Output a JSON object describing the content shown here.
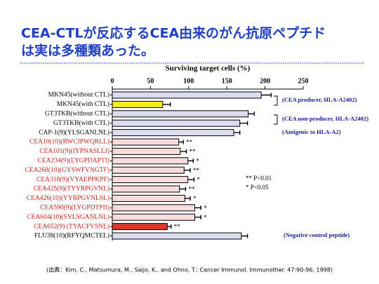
{
  "title_lines": [
    "CEA-CTLが反応するCEA由来のがん抗原ペプチド",
    "は実は多種類あった。"
  ],
  "chart_data": {
    "type": "bar",
    "orientation": "horizontal",
    "x_label": "Surviving target cells (%)",
    "categories": [
      "MKN45(without CTL)",
      "MKN45(with CTL)",
      "GT3TKB(without CTL)",
      "GT3TKB(with CTL)",
      "CAP-1(9)(YLSGANLNL)",
      "CEA10(10)(RWCIPWQRLL)",
      "CEA101(9)(IYPNASLLI)",
      "CEA234(9)(LYGPDAPTI)",
      "CEA268(10)(GYSWFVNGTF)",
      "CEA318(9)(VYAEPPKPF)",
      "CEA425(9)(TYYRPGVNL)",
      "CEA426(10)(YYRPGVNLSL)",
      "CEA590(9)(LYGPDTPII)",
      "CEA604(10)(SYLSGANLNL)",
      "CEA652(9)  (TYACFVSNL)",
      "FLU38(10)(RFYQMCTEL)"
    ],
    "values": [
      195,
      66,
      178,
      167,
      159,
      87,
      89,
      99,
      94,
      99,
      88,
      95,
      108,
      108,
      72,
      169
    ],
    "errors": [
      13,
      10,
      8,
      10,
      8,
      6,
      8,
      7,
      8,
      8,
      8,
      7,
      8,
      8,
      5,
      8
    ],
    "significance": [
      null,
      null,
      null,
      null,
      null,
      "**",
      "**",
      "*",
      "**",
      "*",
      "**",
      "*",
      "*",
      "*",
      "**",
      null
    ],
    "bar_colors": [
      "#dcdcf0",
      "#f5ec1a",
      "#dcdcf0",
      "#dcdcf0",
      "#dcdcf0",
      "#f6dcdc",
      "#f6dcdc",
      "#f6dcdc",
      "#f6dcdc",
      "#f6dcdc",
      "#f6dcdc",
      "#f6dcdc",
      "#f6dcdc",
      "#f6dcdc",
      "#d6392b",
      "#dcdcf0"
    ],
    "label_colors": [
      "#000000",
      "#000000",
      "#000000",
      "#000000",
      "#000000",
      "#c8231a",
      "#c8231a",
      "#c8231a",
      "#c8231a",
      "#c8231a",
      "#c8231a",
      "#c8231a",
      "#c8231a",
      "#c8231a",
      "#c8231a",
      "#000000"
    ],
    "xlim": [
      0,
      250
    ],
    "xticks": [
      0,
      50,
      100,
      150,
      200,
      250
    ],
    "annotations": [
      "(CEA producer, HLA-A2402)",
      "(CEA non-producer, HLA-A2402)",
      "(Antigenic to HLA-A2)",
      "(Negative control peptide)"
    ],
    "significance_legend": [
      "** P<0.01",
      "*  P<0.05"
    ]
  },
  "citation": "(出典：Kim, C., Matsumura, M., Saijo, K., and Ohno, T.: Cancer Immunol. Immunother. 47:90-96, 1998)"
}
